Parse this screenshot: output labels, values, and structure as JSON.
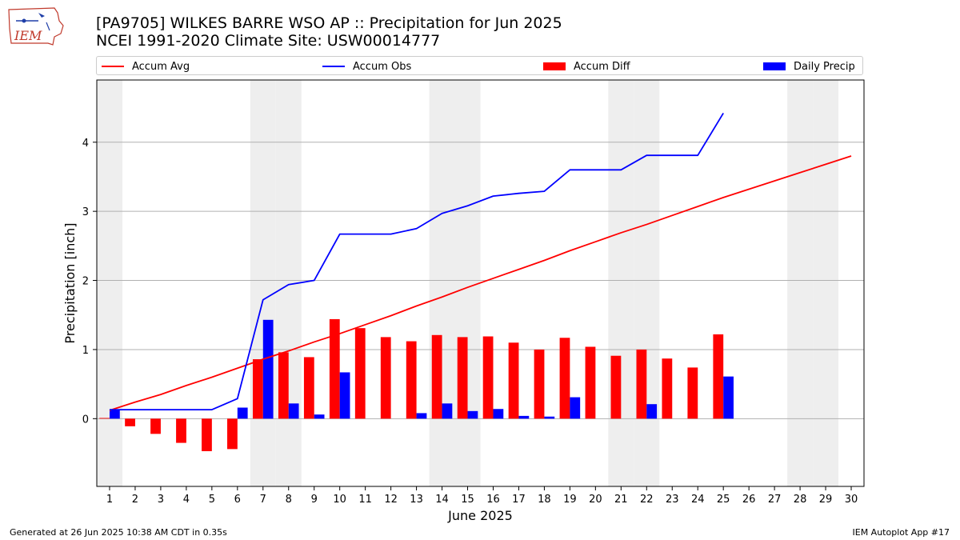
{
  "logo": {
    "text": "IEM"
  },
  "header": {
    "title_line1": "[PA9705] WILKES BARRE WSO AP :: Precipitation for Jun 2025",
    "title_line2": "NCEI 1991-2020 Climate Site: USW00014777"
  },
  "footer": {
    "left": "Generated at 26 Jun 2025 10:38 AM CDT in 0.35s",
    "right": "IEM Autoplot App #17"
  },
  "colors": {
    "avg": "#ff0000",
    "obs": "#0000ff",
    "diff": "#ff0000",
    "daily": "#0000ff",
    "weekend_shade": "#eeeeee",
    "grid": "#b0b0b0"
  },
  "chart_data": {
    "type": "bar",
    "xlabel": "June 2025",
    "ylabel": "Precipitation [inch]",
    "ylim": [
      -0.98,
      4.9
    ],
    "yticks": [
      0,
      1,
      2,
      3,
      4
    ],
    "xlim": [
      0.5,
      30.5
    ],
    "days": [
      1,
      2,
      3,
      4,
      5,
      6,
      7,
      8,
      9,
      10,
      11,
      12,
      13,
      14,
      15,
      16,
      17,
      18,
      19,
      20,
      21,
      22,
      23,
      24,
      25,
      26,
      27,
      28,
      29,
      30
    ],
    "shaded_days": [
      1,
      7,
      8,
      14,
      15,
      21,
      22,
      28,
      29
    ],
    "grid": "horizontal",
    "legend_position": "top",
    "series": [
      {
        "name": "Accum Avg",
        "kind": "line",
        "values": [
          0.12,
          0.24,
          0.35,
          0.48,
          0.6,
          0.73,
          0.86,
          0.98,
          1.11,
          1.23,
          1.36,
          1.49,
          1.63,
          1.76,
          1.9,
          2.03,
          2.16,
          2.29,
          2.43,
          2.56,
          2.69,
          2.81,
          2.94,
          3.07,
          3.2,
          3.32,
          3.44,
          3.56,
          3.68,
          3.8
        ]
      },
      {
        "name": "Accum Obs",
        "kind": "line",
        "values": [
          0.13,
          0.13,
          0.13,
          0.13,
          0.13,
          0.29,
          1.72,
          1.94,
          2.0,
          2.67,
          2.67,
          2.67,
          2.75,
          2.97,
          3.08,
          3.22,
          3.26,
          3.29,
          3.6,
          3.6,
          3.6,
          3.81,
          3.81,
          3.81,
          4.42
        ]
      },
      {
        "name": "Accum Diff",
        "kind": "bar",
        "values": [
          0.01,
          -0.11,
          -0.22,
          -0.35,
          -0.47,
          -0.44,
          0.86,
          0.96,
          0.89,
          1.44,
          1.31,
          1.18,
          1.12,
          1.21,
          1.18,
          1.19,
          1.1,
          1.0,
          1.17,
          1.04,
          0.91,
          1.0,
          0.87,
          0.74,
          1.22
        ]
      },
      {
        "name": "Daily Precip",
        "kind": "bar",
        "values": [
          0.13,
          0.0,
          0.0,
          0.0,
          0.0,
          0.16,
          1.43,
          0.22,
          0.06,
          0.67,
          0.0,
          0.0,
          0.08,
          0.22,
          0.11,
          0.14,
          0.04,
          0.03,
          0.31,
          0.0,
          0.0,
          0.21,
          0.0,
          0.0,
          0.61
        ]
      }
    ]
  }
}
